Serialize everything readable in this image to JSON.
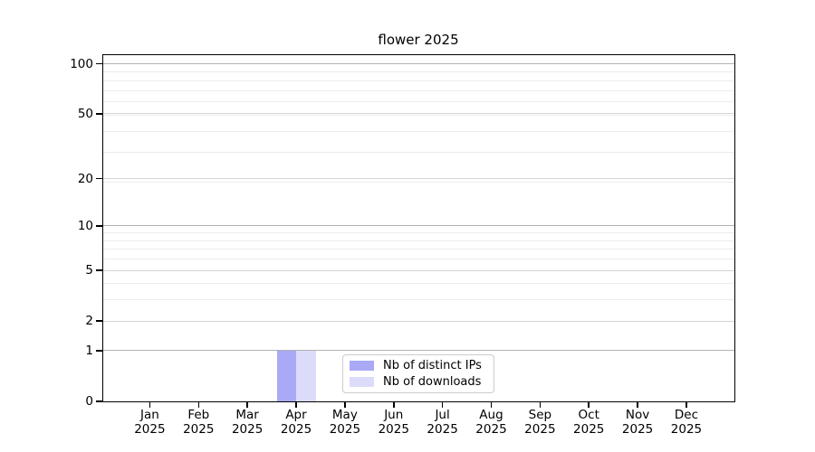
{
  "title": "flower 2025",
  "colors": {
    "distinct_ips_bar": "#a9a9f6",
    "downloads_bar": "#dcdcfa",
    "axis": "#000000",
    "grid_strong": "#b2b2b2",
    "grid_normal": "#d4d4d4",
    "grid_minor": "#ebebeb",
    "legend_border": "#cccccc"
  },
  "chart_data": {
    "type": "bar",
    "title": "flower 2025",
    "categories": [
      "Jan",
      "Feb",
      "Mar",
      "Apr",
      "May",
      "Jun",
      "Jul",
      "Aug",
      "Sep",
      "Oct",
      "Nov",
      "Dec"
    ],
    "category_year": "2025",
    "series": [
      {
        "name": "Nb of distinct IPs",
        "color": "#a9a9f6",
        "values": [
          0,
          0,
          0,
          1,
          0,
          0,
          0,
          0,
          0,
          0,
          0,
          0
        ]
      },
      {
        "name": "Nb of downloads",
        "color": "#dcdcfa",
        "values": [
          0,
          0,
          0,
          1,
          0,
          0,
          0,
          0,
          0,
          0,
          0,
          0
        ]
      }
    ],
    "xlabel": "",
    "ylabel": "",
    "y_scale": "log10(1+x)",
    "y_ticks": [
      0,
      1,
      2,
      5,
      10,
      20,
      50,
      100
    ],
    "y_strong_grid_ticks": [
      1,
      10,
      100
    ],
    "y_minor_gridlines": [
      3,
      4,
      6,
      7,
      8,
      9,
      19,
      29,
      39,
      49,
      59,
      69,
      79,
      89
    ],
    "ylim": [
      0,
      114
    ],
    "grid": "horizontal only",
    "legend_position": "lower center"
  }
}
